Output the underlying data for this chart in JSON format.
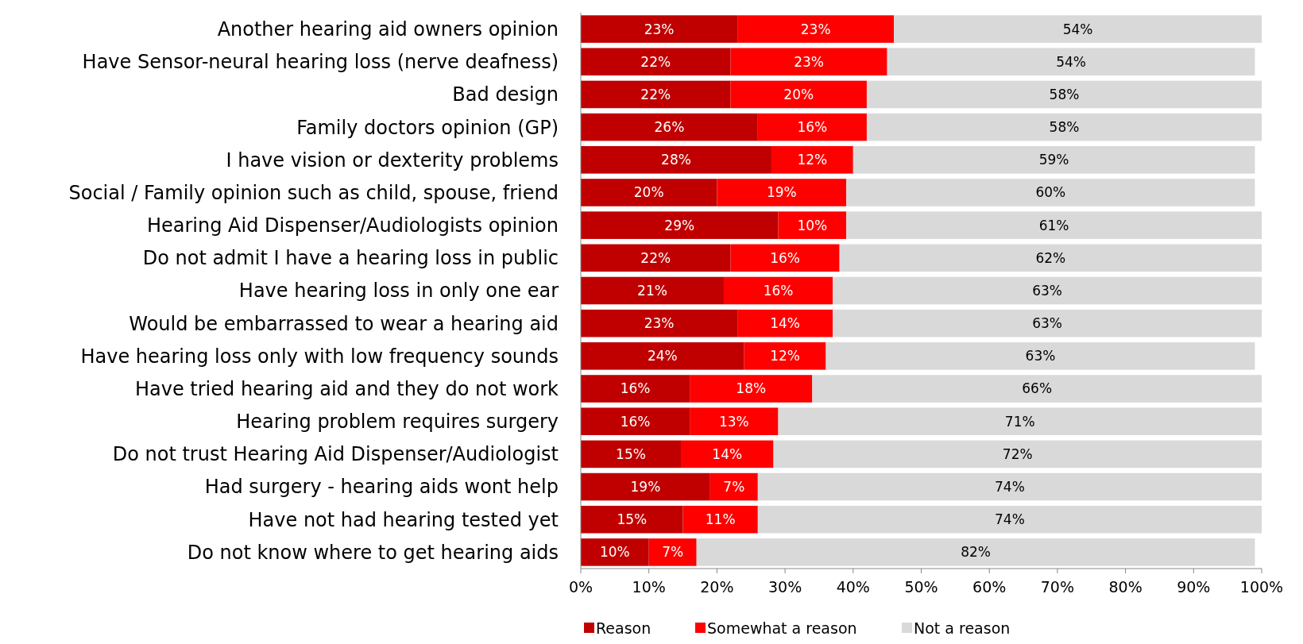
{
  "chart_data": {
    "type": "bar",
    "orientation": "horizontal",
    "stacked": true,
    "legend": "bottom",
    "grid": false,
    "categories": [
      "Another hearing aid owners opinion",
      "Have Sensor-neural hearing loss (nerve deafness)",
      "Bad design",
      "Family doctors opinion (GP)",
      "I have vision or dexterity problems",
      "Social / Family opinion such as child, spouse, friend",
      "Hearing Aid Dispenser/Audiologists opinion",
      "Do not admit I have a hearing loss in public",
      "Have hearing loss in only one ear",
      "Would be embarrassed to wear a hearing aid",
      "Have hearing loss only with low frequency sounds",
      "Have tried hearing aid and they do not work",
      "Hearing problem requires surgery",
      "Do not trust Hearing Aid Dispenser/Audiologist",
      "Had surgery - hearing aids wont help",
      "Have not had hearing tested yet",
      "Do not know where to get hearing aids"
    ],
    "series": [
      {
        "name": "Reason",
        "color": "#c00000",
        "values": [
          23,
          22,
          22,
          26,
          28,
          20,
          29,
          22,
          21,
          23,
          24,
          16,
          16,
          14.7,
          19,
          15,
          10
        ],
        "value_labels": [
          "23%",
          "22%",
          "22%",
          "26%",
          "28%",
          "20%",
          "29%",
          "22%",
          "21%",
          "23%",
          "24%",
          "16%",
          "16%",
          "15%",
          "19%",
          "15%",
          "10%"
        ]
      },
      {
        "name": "Somewhat a reason",
        "color": "#ff0000",
        "values": [
          23,
          23,
          20,
          16,
          12,
          19,
          10,
          16,
          16,
          14,
          12,
          18,
          13,
          13.6,
          7,
          11,
          7
        ],
        "value_labels": [
          "23%",
          "23%",
          "20%",
          "16%",
          "12%",
          "19%",
          "10%",
          "16%",
          "16%",
          "14%",
          "12%",
          "18%",
          "13%",
          "14%",
          "7%",
          "11%",
          "7%"
        ]
      },
      {
        "name": "Not a reason",
        "color": "#d9d9d9",
        "values": [
          54,
          54,
          58,
          58,
          59,
          60,
          61,
          62,
          63,
          63,
          63,
          66,
          71,
          71.7,
          74,
          74,
          82
        ],
        "value_labels": [
          "54%",
          "54%",
          "58%",
          "58%",
          "59%",
          "60%",
          "61%",
          "62%",
          "63%",
          "63%",
          "63%",
          "66%",
          "71%",
          "72%",
          "74%",
          "74%",
          "82%"
        ]
      }
    ],
    "xlim": [
      0,
      100
    ],
    "xticks": [
      {
        "value": 0,
        "label": "0%"
      },
      {
        "value": 10,
        "label": "10%"
      },
      {
        "value": 20,
        "label": "20%"
      },
      {
        "value": 30,
        "label": "30%"
      },
      {
        "value": 40,
        "label": "40%"
      },
      {
        "value": 50,
        "label": "50%"
      },
      {
        "value": 60,
        "label": "60%"
      },
      {
        "value": 70,
        "label": "70%"
      },
      {
        "value": 80,
        "label": "80%"
      },
      {
        "value": 90,
        "label": "90%"
      },
      {
        "value": 100,
        "label": "100%"
      }
    ]
  }
}
